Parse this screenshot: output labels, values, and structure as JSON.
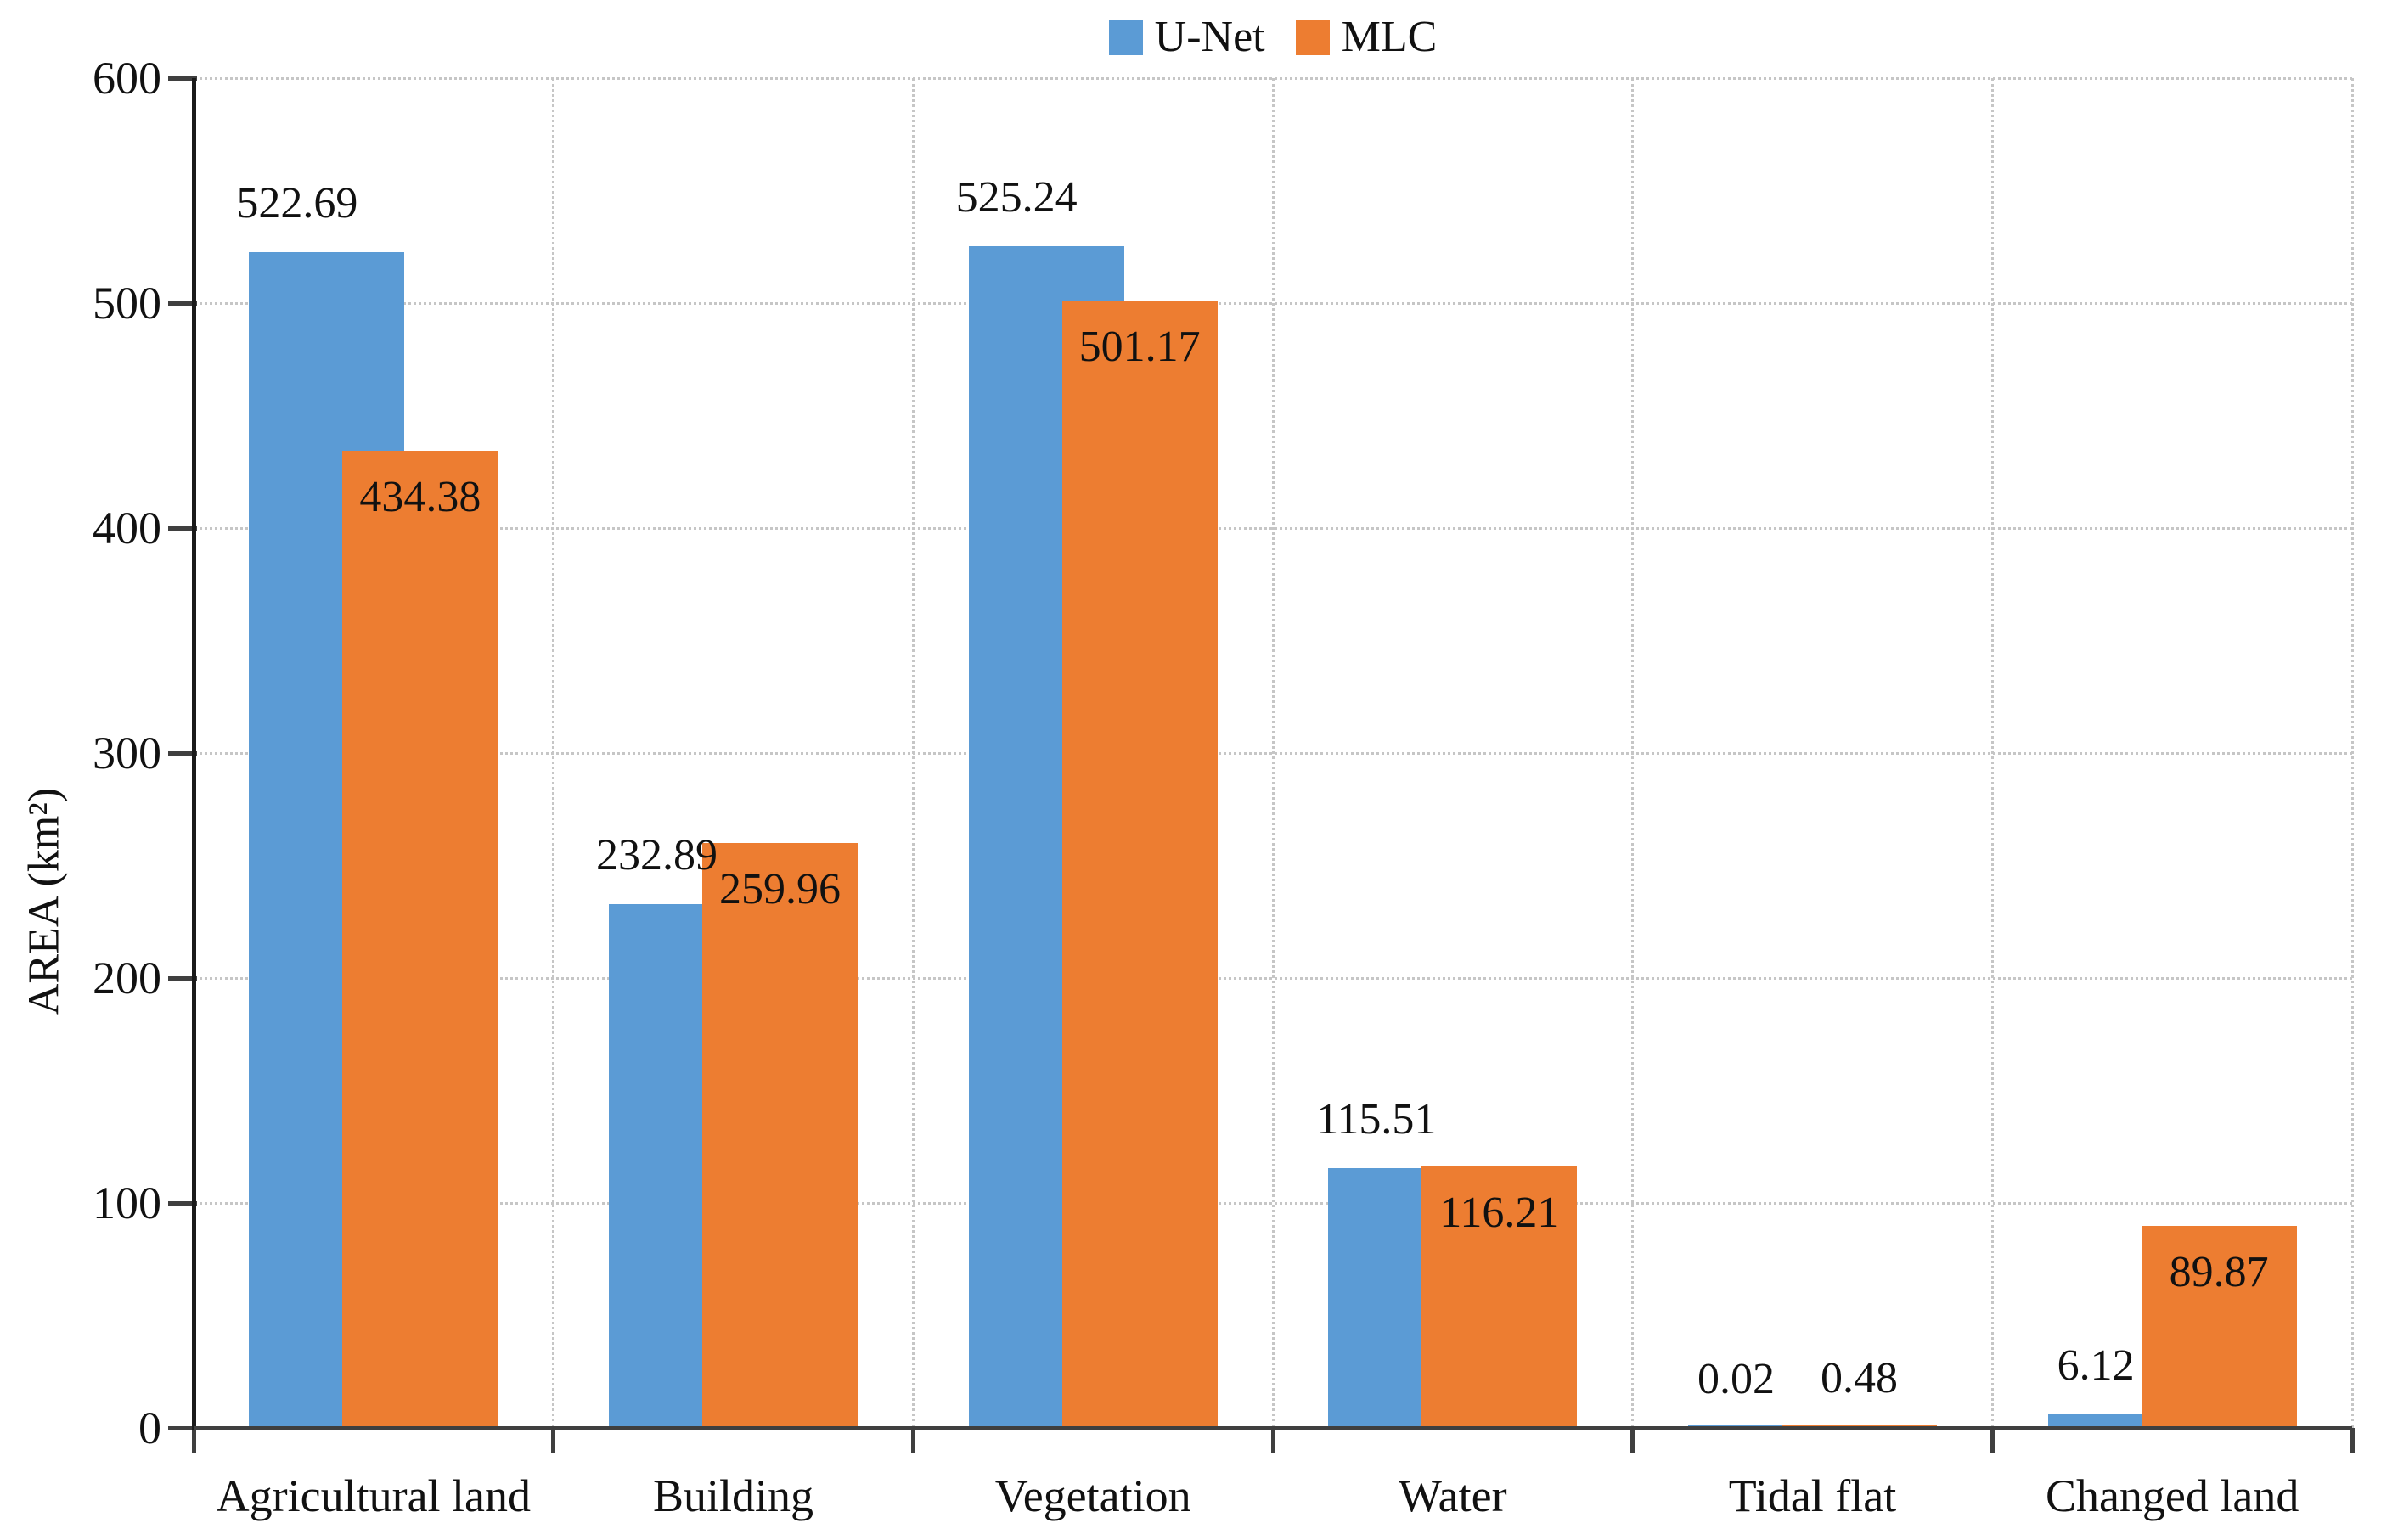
{
  "chart_data": {
    "type": "bar",
    "title": "",
    "categories": [
      "Agricultural land",
      "Building",
      "Vegetation",
      "Water",
      "Tidal flat",
      "Changed land"
    ],
    "series": [
      {
        "name": "U-Net",
        "color": "#5B9BD5",
        "values": [
          522.69,
          232.89,
          525.24,
          115.51,
          0.02,
          6.12
        ]
      },
      {
        "name": "MLC",
        "color": "#ED7D31",
        "values": [
          434.38,
          259.96,
          501.17,
          116.21,
          0.48,
          89.87
        ]
      }
    ],
    "xlabel": "",
    "ylabel": "AREA (km²)",
    "ylim": [
      0,
      600
    ],
    "yticks": [
      0,
      100,
      200,
      300,
      400,
      500,
      600
    ],
    "grid": "horizontal-and-vertical-dotted",
    "legend_position": "top-center",
    "value_label_decimals": 2,
    "colors": {
      "unet_blue": "#5B9BD5",
      "mlc_orange": "#ED7D31",
      "gridline": "#c6c6c6",
      "axis": "#3f3f3f",
      "text": "#111111"
    }
  }
}
